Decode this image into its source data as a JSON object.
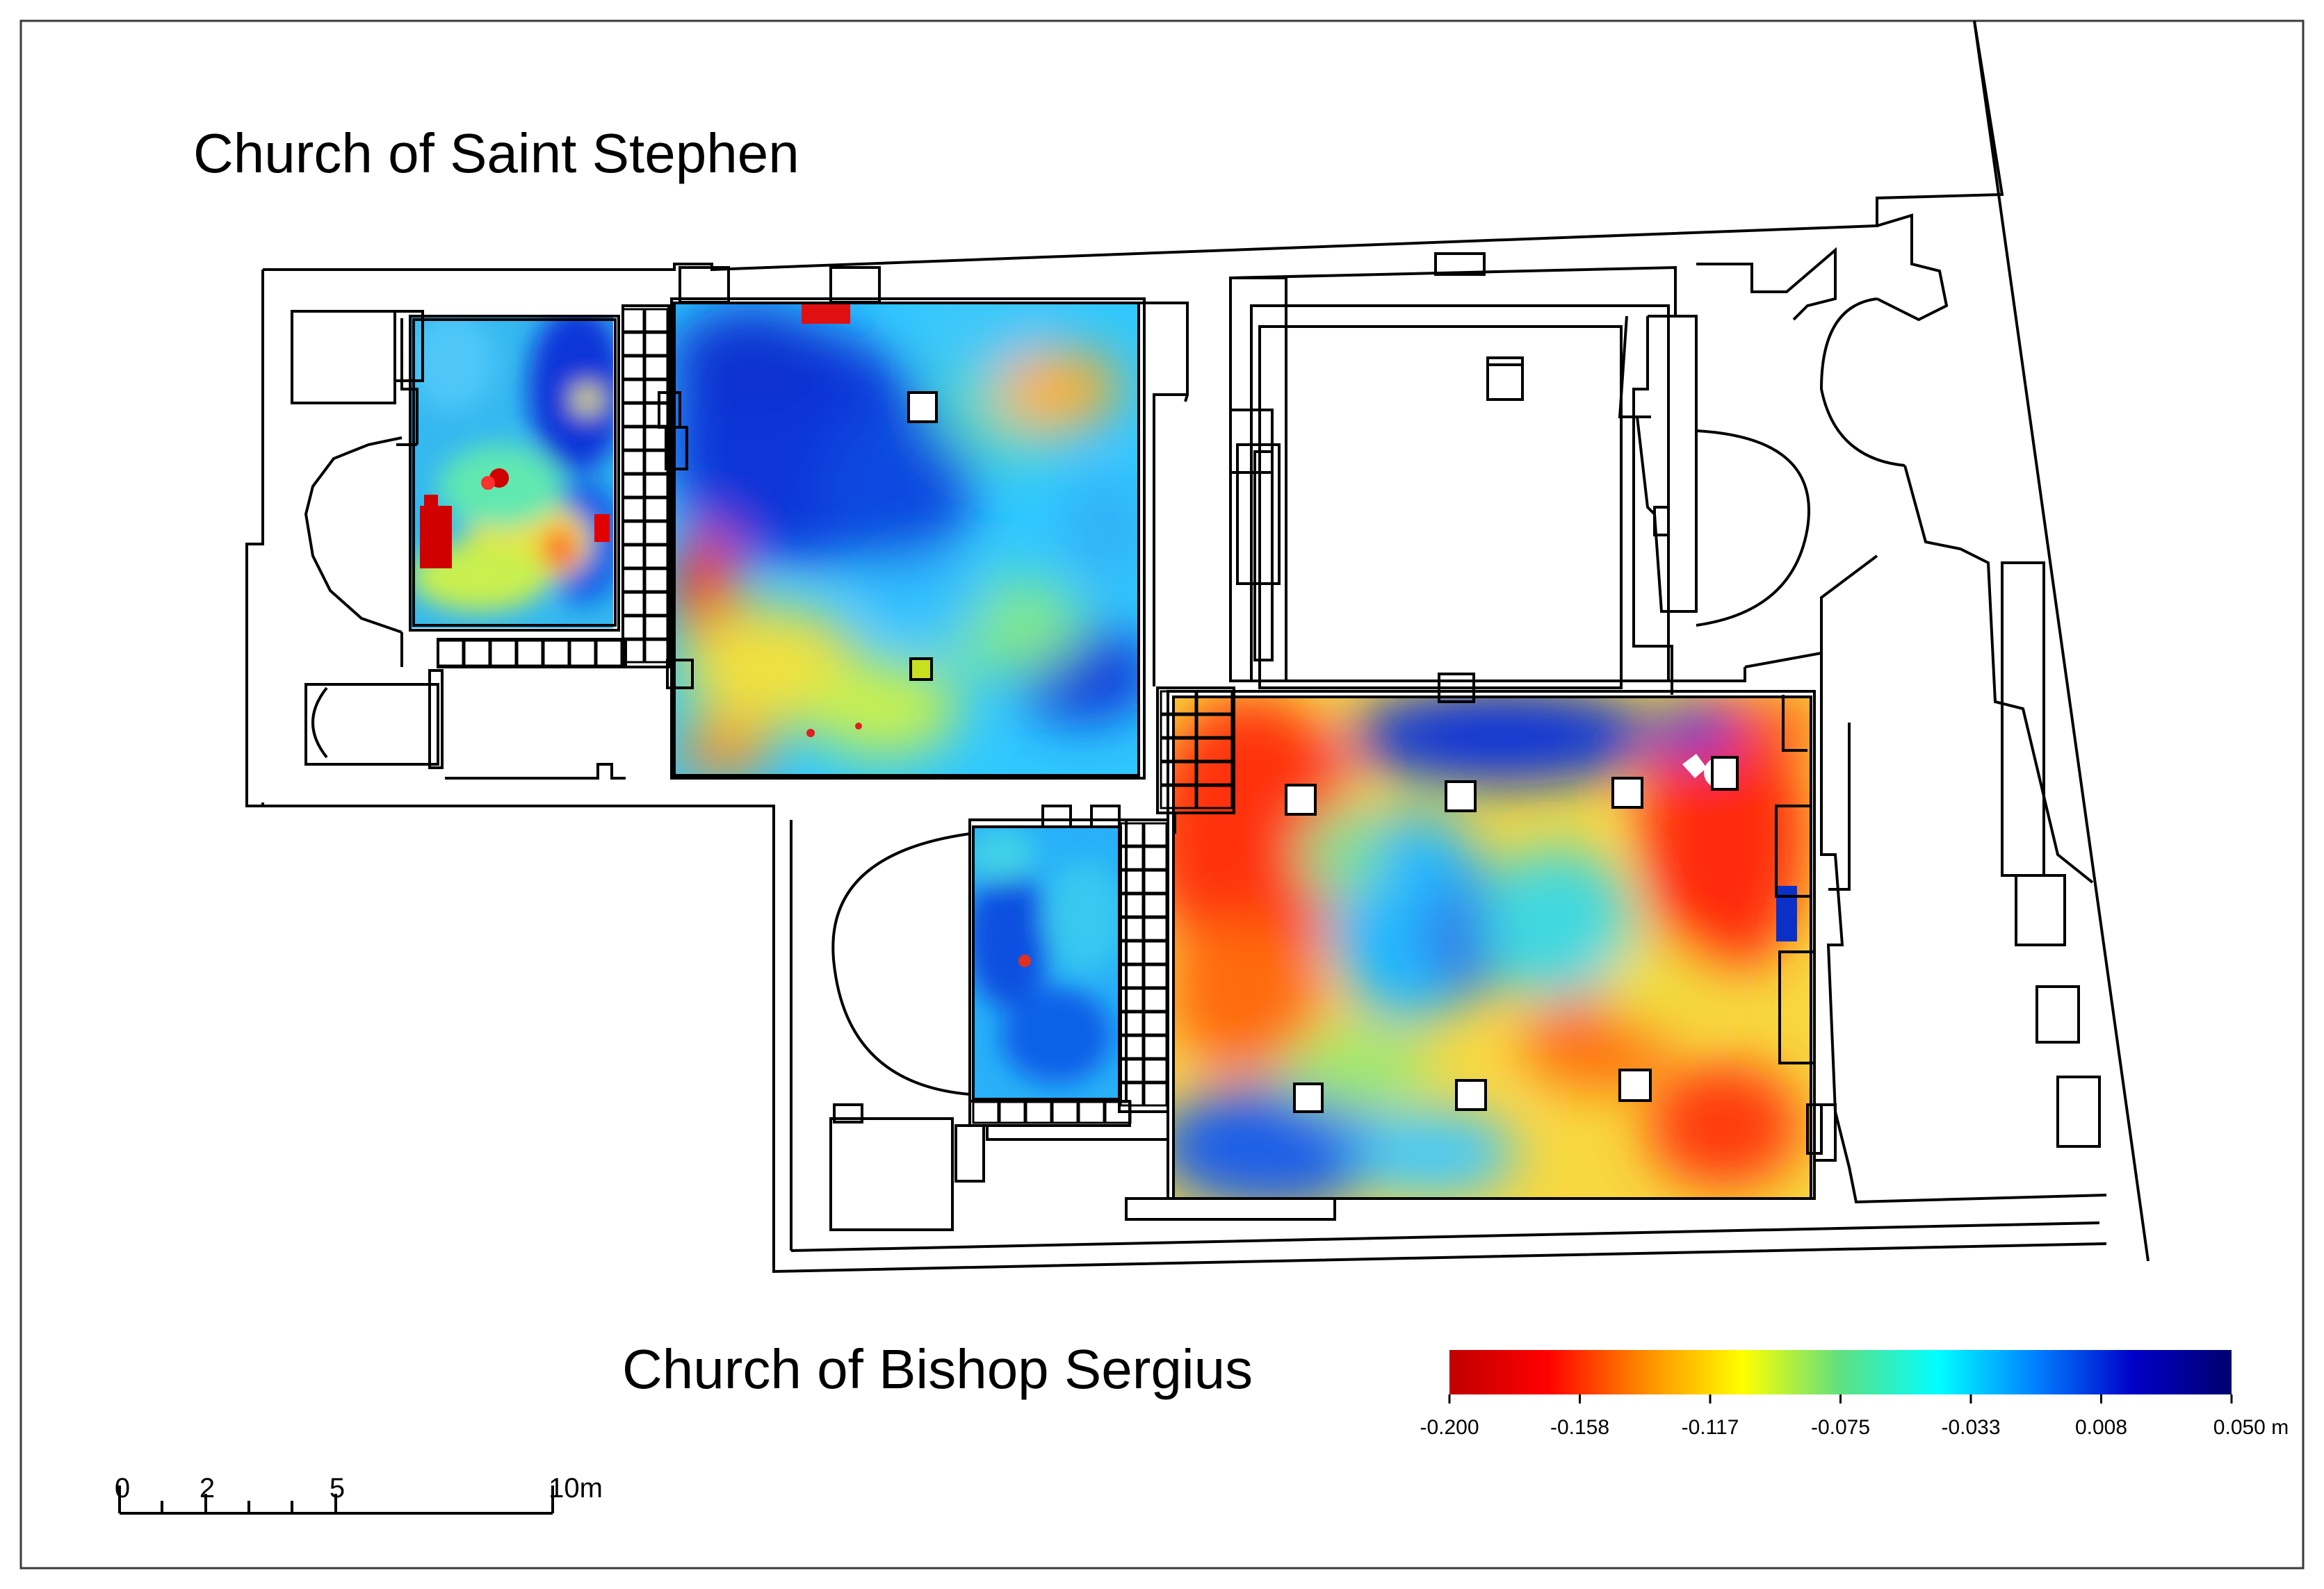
{
  "labels": {
    "saint_stephen": "Church of Saint Stephen",
    "bishop_sergius": "Church of Bishop Sergius"
  },
  "colorbar": {
    "ticks": [
      "-0.200",
      "-0.158",
      "-0.117",
      "-0.075",
      "-0.033",
      "0.008",
      "0.050 m"
    ],
    "colors": [
      "#c00000",
      "#ff0000",
      "#ff8c00",
      "#ffff00",
      "#5fe07f",
      "#00ffff",
      "#0080ff",
      "#0000c8",
      "#00006e"
    ]
  },
  "scalebar": {
    "ticks": [
      "0",
      "2",
      "5",
      "10m"
    ]
  },
  "colors": {
    "outline": "#000000",
    "frame": "#3a3a3a"
  }
}
